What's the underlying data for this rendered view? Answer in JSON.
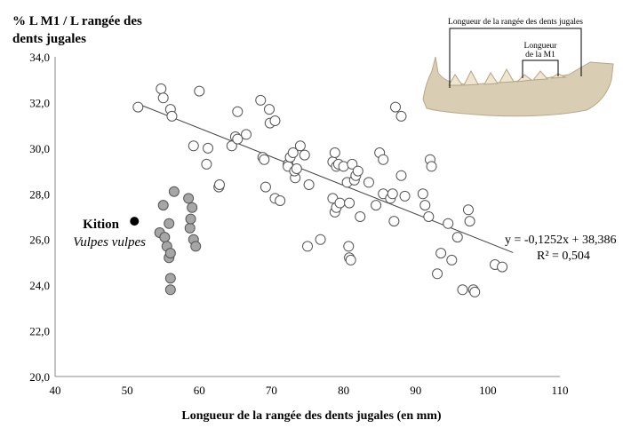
{
  "chart_data": {
    "type": "scatter",
    "ylabel": "% L M1 / L rangée des dents jugales",
    "xlabel": "Longueur de la rangée des dents jugales (en mm)",
    "xlim": [
      40,
      110
    ],
    "ylim": [
      20,
      34
    ],
    "x_ticks": [
      "40",
      "50",
      "60",
      "70",
      "80",
      "90",
      "100",
      "110"
    ],
    "y_ticks": [
      "20,0",
      "22,0",
      "24,0",
      "26,0",
      "28,0",
      "30,0",
      "32,0",
      "34,0"
    ],
    "grid": false,
    "series": [
      {
        "name": "",
        "marker": "open-circle",
        "points": [
          [
            51.5,
            31.8
          ],
          [
            54.7,
            32.6
          ],
          [
            55.0,
            32.2
          ],
          [
            56.0,
            31.7
          ],
          [
            56.2,
            31.4
          ],
          [
            59.2,
            30.1
          ],
          [
            60.0,
            32.5
          ],
          [
            61.0,
            29.3
          ],
          [
            61.2,
            30.0
          ],
          [
            62.7,
            28.3
          ],
          [
            62.8,
            28.4
          ],
          [
            64.5,
            30.1
          ],
          [
            65.0,
            30.5
          ],
          [
            65.3,
            30.4
          ],
          [
            65.3,
            31.6
          ],
          [
            66.5,
            30.6
          ],
          [
            68.5,
            32.1
          ],
          [
            68.8,
            29.6
          ],
          [
            69.0,
            29.5
          ],
          [
            69.2,
            28.3
          ],
          [
            69.7,
            31.7
          ],
          [
            69.8,
            31.1
          ],
          [
            70.5,
            31.2
          ],
          [
            70.5,
            27.8
          ],
          [
            71.2,
            27.7
          ],
          [
            72.3,
            29.3
          ],
          [
            72.3,
            29.2
          ],
          [
            72.6,
            29.6
          ],
          [
            73.0,
            29.8
          ],
          [
            73.3,
            28.7
          ],
          [
            73.2,
            29.0
          ],
          [
            73.5,
            29.1
          ],
          [
            74.0,
            30.1
          ],
          [
            74.6,
            29.7
          ],
          [
            75.2,
            28.4
          ],
          [
            75.0,
            25.7
          ],
          [
            76.8,
            26.0
          ],
          [
            78.5,
            29.4
          ],
          [
            78.8,
            29.8
          ],
          [
            79.0,
            29.2
          ],
          [
            79.3,
            29.3
          ],
          [
            78.5,
            27.8
          ],
          [
            78.8,
            27.2
          ],
          [
            79.0,
            27.4
          ],
          [
            79.5,
            27.6
          ],
          [
            80.0,
            29.2
          ],
          [
            80.5,
            28.5
          ],
          [
            80.8,
            27.6
          ],
          [
            80.7,
            25.7
          ],
          [
            80.8,
            25.2
          ],
          [
            81.0,
            25.1
          ],
          [
            81.2,
            29.3
          ],
          [
            81.5,
            28.6
          ],
          [
            81.7,
            28.8
          ],
          [
            82.0,
            29.0
          ],
          [
            82.3,
            27.0
          ],
          [
            83.5,
            28.5
          ],
          [
            84.5,
            27.5
          ],
          [
            85.0,
            29.8
          ],
          [
            85.5,
            29.5
          ],
          [
            85.5,
            28.0
          ],
          [
            86.5,
            27.8
          ],
          [
            86.8,
            28.0
          ],
          [
            87.0,
            26.8
          ],
          [
            87.2,
            31.8
          ],
          [
            88.0,
            31.4
          ],
          [
            88.0,
            28.8
          ],
          [
            88.5,
            27.9
          ],
          [
            91.0,
            28.0
          ],
          [
            91.3,
            27.5
          ],
          [
            91.8,
            27.0
          ],
          [
            92.0,
            29.5
          ],
          [
            92.2,
            29.2
          ],
          [
            93.0,
            24.5
          ],
          [
            93.5,
            25.4
          ],
          [
            94.5,
            26.7
          ],
          [
            95.0,
            25.1
          ],
          [
            95.8,
            26.1
          ],
          [
            96.5,
            23.8
          ],
          [
            97.3,
            27.3
          ],
          [
            97.5,
            26.8
          ],
          [
            98.0,
            23.8
          ],
          [
            98.2,
            23.7
          ],
          [
            101.0,
            24.9
          ],
          [
            102.0,
            24.8
          ]
        ]
      },
      {
        "name": "",
        "marker": "gray-circle",
        "points": [
          [
            54.5,
            26.3
          ],
          [
            55.0,
            27.5
          ],
          [
            55.2,
            26.1
          ],
          [
            55.5,
            25.7
          ],
          [
            55.8,
            26.7
          ],
          [
            55.8,
            25.2
          ],
          [
            56.0,
            25.4
          ],
          [
            56.0,
            24.3
          ],
          [
            56.0,
            23.8
          ],
          [
            56.5,
            28.1
          ],
          [
            58.5,
            27.8
          ],
          [
            58.7,
            26.5
          ],
          [
            58.8,
            26.9
          ],
          [
            59.0,
            27.4
          ],
          [
            59.2,
            26.0
          ],
          [
            59.5,
            25.7
          ]
        ]
      },
      {
        "name": "Kition",
        "marker": "filled-circle",
        "points": [
          [
            51.0,
            26.8
          ]
        ]
      }
    ],
    "annotations": {
      "kition_label": "Kition",
      "species_label": "Vulpes vulpes",
      "equation": "y = -0,1252x + 38,386",
      "r_squared": "R² = 0,504"
    },
    "trendline": {
      "slope": -0.1252,
      "intercept": 38.386,
      "x_from": 51.5,
      "x_to": 103.5
    },
    "inset": {
      "label_row": "Longueur de la rangée des dents jugales",
      "label_m1_line1": "Longueur",
      "label_m1_line2": "de la M1",
      "jaw_color": "#d9cdb4",
      "teeth_color": "#efe6cf"
    }
  }
}
